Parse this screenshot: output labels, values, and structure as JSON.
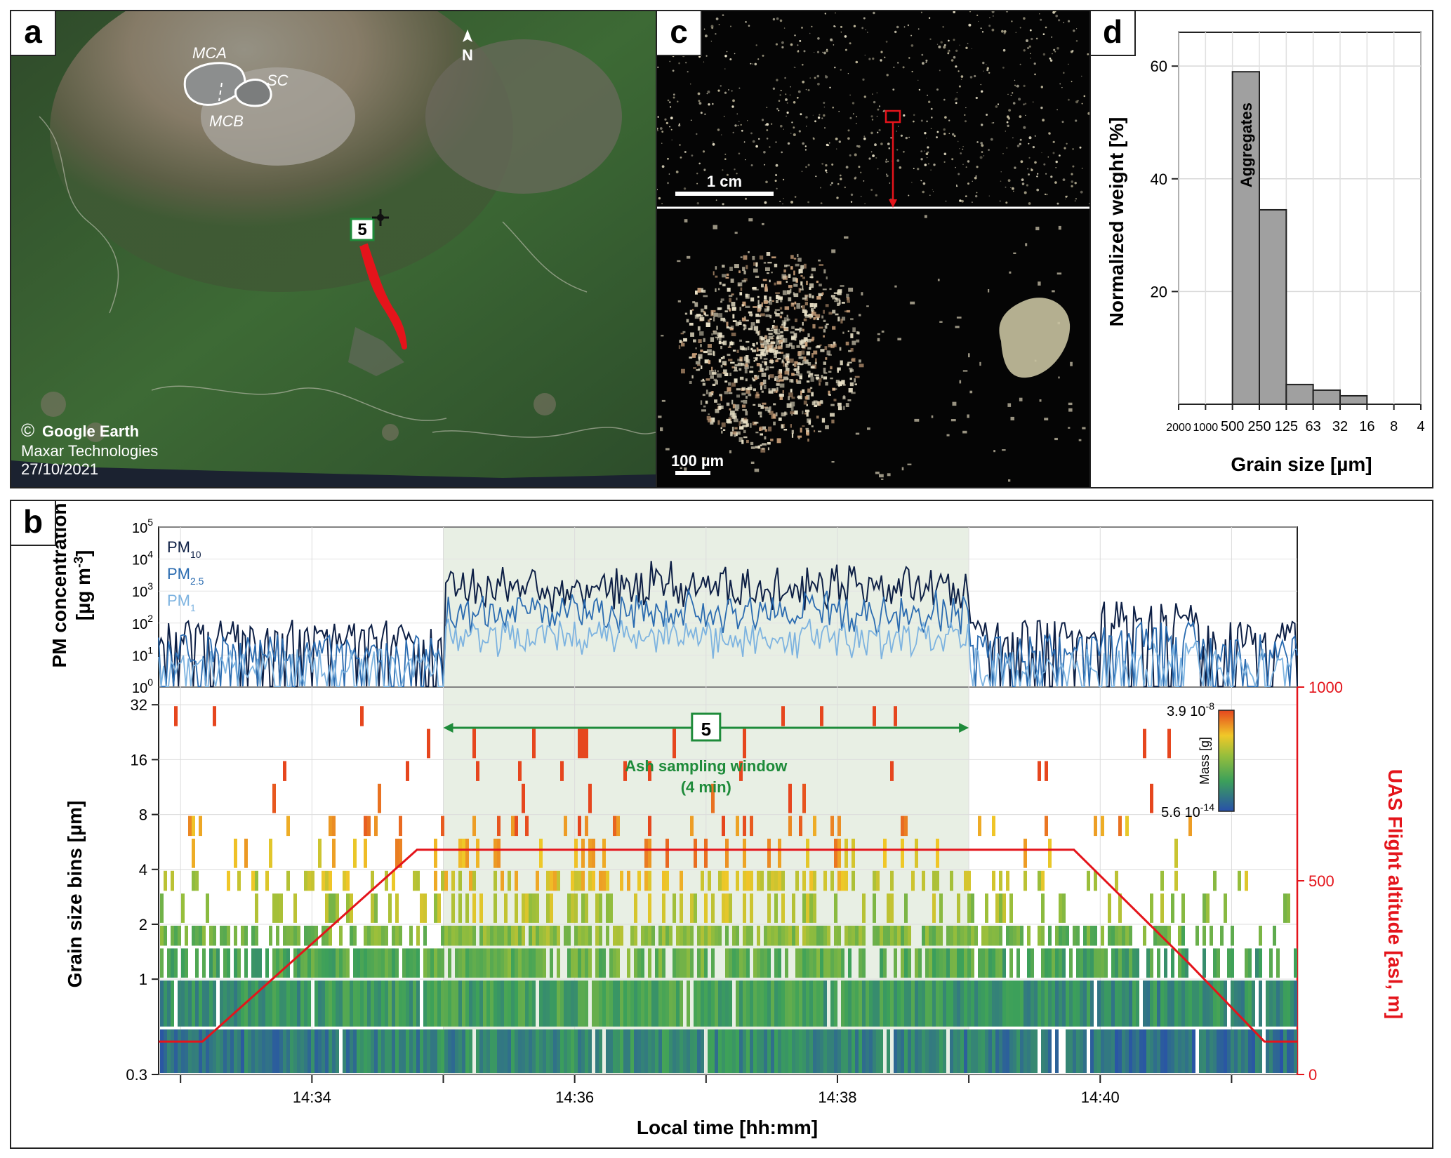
{
  "panels": {
    "a": "a",
    "b": "b",
    "c": "c",
    "d": "d"
  },
  "map": {
    "north": "N",
    "labels": {
      "mca": "MCA",
      "sc": "SC",
      "mcb": "MCB"
    },
    "site": "5",
    "credit_symbol": "©",
    "credit_1": "Google Earth",
    "credit_2": "Maxar Technologies",
    "credit_3": "27/10/2021",
    "colors": {
      "track": "#e4141b",
      "site_box": "#1e8b3a",
      "outline": "#ffffff"
    }
  },
  "micro": {
    "scale_top": "1 cm",
    "scale_bottom": "100 µm",
    "colors": {
      "highlight": "#e4141b"
    }
  },
  "annotations": {
    "sampling_label": "5",
    "sampling_line1": "Ash sampling window",
    "sampling_line2": "(4 min)",
    "colorbar_label": "Mass [g]",
    "colorbar_max": "3.9 10",
    "colorbar_max_exp": "-8",
    "colorbar_min": "5.6 10",
    "colorbar_min_exp": "-14",
    "colors": {
      "window": "#1e8b3a",
      "shade": "#e8efe4",
      "altitude": "#e4141b"
    }
  },
  "chart_data": [
    {
      "id": "d",
      "type": "bar",
      "categories": [
        "2000",
        "1000",
        "500",
        "250",
        "125",
        "63",
        "32",
        "16",
        "8",
        "4"
      ],
      "values": [
        0,
        0,
        59,
        34.5,
        3.5,
        2.5,
        1.5,
        0,
        0,
        0
      ],
      "annotation": "Aggregates",
      "xlabel": "Grain size [µm]",
      "ylabel": "Normalized weight [%]",
      "yticks": [
        20,
        40,
        60
      ],
      "ylim": [
        0,
        66
      ],
      "colors": {
        "bar": "#a0a0a0"
      }
    },
    {
      "id": "b-top",
      "type": "line",
      "ylabel_1": "PM concentration",
      "ylabel_2": "[µg m",
      "ylabel_2_sup": "-3",
      "ylabel_2_end": "]",
      "yscale": "log",
      "ylim": [
        1,
        100000
      ],
      "yticks": [
        {
          "base": "10",
          "exp": "0"
        },
        {
          "base": "10",
          "exp": "1"
        },
        {
          "base": "10",
          "exp": "2"
        },
        {
          "base": "10",
          "exp": "3"
        },
        {
          "base": "10",
          "exp": "4"
        },
        {
          "base": "10",
          "exp": "5"
        }
      ],
      "series": [
        {
          "name": "PM",
          "sub": "10",
          "color": "#0d1f45",
          "base": 1.2,
          "peak_window": 3.0
        },
        {
          "name": "PM",
          "sub": "2.5",
          "color": "#2a6bb0",
          "base": 0.75,
          "peak_window": 2.1
        },
        {
          "name": "PM",
          "sub": "1",
          "color": "#7db3e0",
          "base": 0.3,
          "peak_window": 1.2
        }
      ]
    },
    {
      "id": "b-bottom",
      "type": "heatmap",
      "xlabel": "Local time [hh:mm]",
      "ylabel": "Grain size bins [µm]",
      "y2label": "UAS Flight altitude [asl, m]",
      "xticks": [
        "14:34",
        "14:36",
        "14:38",
        "14:40"
      ],
      "yticks": [
        "0.3",
        "1",
        "2",
        "4",
        "8",
        "16",
        "32"
      ],
      "y2ticks": [
        "0",
        "500",
        "1000"
      ],
      "y2lim": [
        0,
        1000
      ],
      "xlim": [
        "14:32:50",
        "14:41:30"
      ],
      "sampling_window": [
        "14:35:00",
        "14:39:00"
      ],
      "altitude": {
        "times": [
          "14:32:50",
          "14:33:10",
          "14:34:48",
          "14:39:48",
          "14:40:40",
          "14:41:15",
          "14:41:30"
        ],
        "values": [
          85,
          85,
          580,
          580,
          290,
          85,
          85
        ]
      }
    }
  ]
}
